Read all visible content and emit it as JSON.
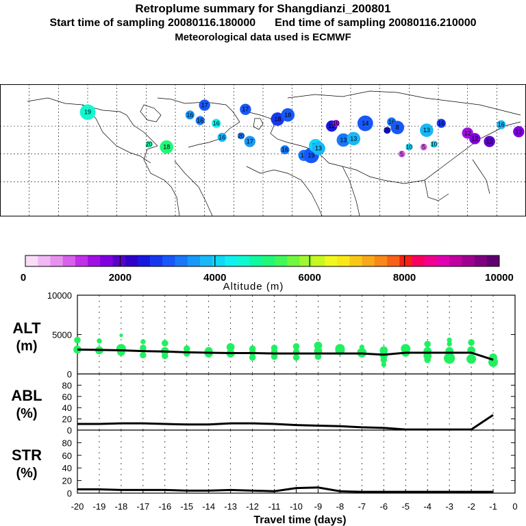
{
  "header": {
    "title": "Retroplume summary for Shangdianzi_200801",
    "start_label": "Start time of sampling 20080116.180000",
    "end_label": "End time of sampling 20080116.210000",
    "met_label": "Meteorological data used is ECMWF"
  },
  "colorbar": {
    "label": "Altitude (m)",
    "tick_labels": [
      "0",
      "2000",
      "4000",
      "6000",
      "8000",
      "10000"
    ],
    "ticks": [
      0,
      2000,
      4000,
      6000,
      8000,
      10000
    ],
    "colors": [
      "#f8dcf8",
      "#f0b8f4",
      "#e890f0",
      "#d860ec",
      "#c030e8",
      "#a010e4",
      "#8000e0",
      "#5a00c8",
      "#3000c8",
      "#1818e0",
      "#1838f0",
      "#1858f8",
      "#1878f8",
      "#1898f8",
      "#18b8f8",
      "#10d8f8",
      "#10f0f0",
      "#10f8d0",
      "#10f8a0",
      "#20f878",
      "#40f858",
      "#70f840",
      "#a0f830",
      "#c8f820",
      "#f0f820",
      "#f8e818",
      "#f8c818",
      "#f8a818",
      "#f88818",
      "#f86018",
      "#f82010",
      "#f80060",
      "#f00090",
      "#e000b0",
      "#c000a0",
      "#a00090",
      "#800080",
      "#600070"
    ]
  },
  "map": {
    "labels": [
      {
        "lon": -120,
        "lat": 70,
        "text": "19",
        "alt": 4600
      },
      {
        "lon": -50,
        "lat": 68,
        "text": "16",
        "alt": 3600
      },
      {
        "lon": -43,
        "lat": 64,
        "text": "16",
        "alt": 3200
      },
      {
        "lon": -32,
        "lat": 62,
        "text": "16",
        "alt": 4400
      },
      {
        "lon": -28,
        "lat": 52,
        "text": "16",
        "alt": 3800
      },
      {
        "lon": -15,
        "lat": 53,
        "text": "20",
        "alt": 3300
      },
      {
        "lon": -9,
        "lat": 49,
        "text": "17",
        "alt": 3600
      },
      {
        "lon": -78,
        "lat": 47,
        "text": "20",
        "alt": 4900
      },
      {
        "lon": -66,
        "lat": 45,
        "text": "18",
        "alt": 5200
      },
      {
        "lon": 10,
        "lat": 65,
        "text": "18",
        "alt": 2800
      },
      {
        "lon": 17,
        "lat": 68,
        "text": "18",
        "alt": 3000
      },
      {
        "lon": 15,
        "lat": 43,
        "text": "16",
        "alt": 3400
      },
      {
        "lon": 28,
        "lat": 39,
        "text": "17",
        "alt": 3200
      },
      {
        "lon": 33,
        "lat": 39,
        "text": "19",
        "alt": 3000
      },
      {
        "lon": 36,
        "lat": 46,
        "text": "13",
        "alt": 4200
      },
      {
        "lon": 38,
        "lat": 44,
        "text": "13",
        "alt": 3800
      },
      {
        "lon": 47,
        "lat": 60,
        "text": "12",
        "alt": 2400
      },
      {
        "lon": 50,
        "lat": 62,
        "text": "10",
        "alt": 1500
      },
      {
        "lon": 55,
        "lat": 50,
        "text": "13",
        "alt": 3300
      },
      {
        "lon": 62,
        "lat": 51,
        "text": "13",
        "alt": 3900
      },
      {
        "lon": 70,
        "lat": 62,
        "text": "14",
        "alt": 2900
      },
      {
        "lon": 88,
        "lat": 63,
        "text": "16",
        "alt": 3400
      },
      {
        "lon": 92,
        "lat": 59,
        "text": "8",
        "alt": 3000
      },
      {
        "lon": 85,
        "lat": 57,
        "text": "20",
        "alt": 2600
      },
      {
        "lon": 100,
        "lat": 45,
        "text": "10",
        "alt": 4100
      },
      {
        "lon": 112,
        "lat": 57,
        "text": "13",
        "alt": 3800
      },
      {
        "lon": 117,
        "lat": 47,
        "text": "10",
        "alt": 4100
      },
      {
        "lon": 122,
        "lat": 62,
        "text": "16",
        "alt": 2800
      },
      {
        "lon": 140,
        "lat": 55,
        "text": "12",
        "alt": 1500
      },
      {
        "lon": 145,
        "lat": 51,
        "text": "12",
        "alt": 1700
      },
      {
        "lon": 155,
        "lat": 49,
        "text": "12",
        "alt": 1900
      },
      {
        "lon": 163,
        "lat": 61,
        "text": "16",
        "alt": 3700
      },
      {
        "lon": 175,
        "lat": 56,
        "text": "12",
        "alt": 1800
      },
      {
        "lon": 110,
        "lat": 45,
        "text": "5",
        "alt": 1000
      },
      {
        "lon": 95,
        "lat": 40,
        "text": "5",
        "alt": 800
      },
      {
        "lon": -12,
        "lat": 72,
        "text": "17",
        "alt": 3000
      },
      {
        "lon": -40,
        "lat": 75,
        "text": "17",
        "alt": 3000
      }
    ]
  },
  "chart_data": [
    {
      "type": "scatter",
      "name": "ALT",
      "ylabel": "ALT\n(m)",
      "ylabel_line1": "ALT",
      "ylabel_line2": "(m)",
      "ylim": [
        0,
        10000
      ],
      "ytick_labels": [
        "10000",
        "5000",
        "0"
      ],
      "line_x": [
        -20,
        -19,
        -18,
        -17,
        -16,
        -15,
        -14,
        -13,
        -12,
        -11,
        -10,
        -9,
        -8,
        -7,
        -6,
        -5,
        -4,
        -3,
        -2,
        -1
      ],
      "line_y": [
        3100,
        3050,
        3000,
        2900,
        2850,
        2750,
        2700,
        2650,
        2650,
        2600,
        2600,
        2600,
        2600,
        2600,
        2450,
        2700,
        2700,
        2700,
        2700,
        1800
      ],
      "points": [
        {
          "x": -20,
          "y": 4300,
          "s": 3
        },
        {
          "x": -20,
          "y": 3100,
          "s": 4
        },
        {
          "x": -19,
          "y": 4200,
          "s": 2
        },
        {
          "x": -19,
          "y": 3000,
          "s": 4
        },
        {
          "x": -18,
          "y": 4900,
          "s": 1
        },
        {
          "x": -18,
          "y": 3200,
          "s": 5
        },
        {
          "x": -18,
          "y": 2800,
          "s": 4
        },
        {
          "x": -17,
          "y": 4100,
          "s": 2
        },
        {
          "x": -17,
          "y": 3300,
          "s": 3
        },
        {
          "x": -17,
          "y": 2400,
          "s": 3
        },
        {
          "x": -16,
          "y": 3900,
          "s": 3
        },
        {
          "x": -16,
          "y": 2900,
          "s": 4
        },
        {
          "x": -16,
          "y": 2300,
          "s": 3
        },
        {
          "x": -15,
          "y": 3200,
          "s": 3
        },
        {
          "x": -15,
          "y": 2600,
          "s": 3
        },
        {
          "x": -14,
          "y": 2900,
          "s": 4
        },
        {
          "x": -14,
          "y": 2600,
          "s": 4
        },
        {
          "x": -13,
          "y": 3400,
          "s": 4
        },
        {
          "x": -13,
          "y": 2600,
          "s": 4
        },
        {
          "x": -12,
          "y": 3200,
          "s": 3
        },
        {
          "x": -12,
          "y": 2700,
          "s": 3
        },
        {
          "x": -12,
          "y": 2100,
          "s": 3
        },
        {
          "x": -11,
          "y": 3300,
          "s": 3
        },
        {
          "x": -11,
          "y": 2800,
          "s": 3
        },
        {
          "x": -11,
          "y": 2200,
          "s": 3
        },
        {
          "x": -10,
          "y": 3500,
          "s": 3
        },
        {
          "x": -10,
          "y": 2800,
          "s": 3
        },
        {
          "x": -10,
          "y": 2100,
          "s": 3
        },
        {
          "x": -9,
          "y": 3600,
          "s": 4
        },
        {
          "x": -9,
          "y": 2900,
          "s": 4
        },
        {
          "x": -9,
          "y": 2200,
          "s": 3
        },
        {
          "x": -8,
          "y": 3200,
          "s": 5
        },
        {
          "x": -8,
          "y": 3000,
          "s": 5
        },
        {
          "x": -7,
          "y": 3400,
          "s": 2
        },
        {
          "x": -7,
          "y": 2700,
          "s": 5
        },
        {
          "x": -6,
          "y": 3000,
          "s": 4
        },
        {
          "x": -6,
          "y": 2400,
          "s": 4
        },
        {
          "x": -6,
          "y": 1800,
          "s": 3
        },
        {
          "x": -6,
          "y": 1200,
          "s": 2
        },
        {
          "x": -5,
          "y": 3200,
          "s": 5
        },
        {
          "x": -5,
          "y": 2700,
          "s": 4
        },
        {
          "x": -4,
          "y": 3800,
          "s": 3
        },
        {
          "x": -4,
          "y": 2900,
          "s": 4
        },
        {
          "x": -4,
          "y": 2300,
          "s": 4
        },
        {
          "x": -4,
          "y": 1800,
          "s": 3
        },
        {
          "x": -3,
          "y": 4300,
          "s": 2
        },
        {
          "x": -3,
          "y": 3800,
          "s": 2
        },
        {
          "x": -3,
          "y": 2900,
          "s": 4
        },
        {
          "x": -3,
          "y": 2000,
          "s": 6
        },
        {
          "x": -2,
          "y": 4000,
          "s": 3
        },
        {
          "x": -2,
          "y": 3000,
          "s": 4
        },
        {
          "x": -2,
          "y": 1900,
          "s": 5
        },
        {
          "x": -1,
          "y": 2100,
          "s": 4
        },
        {
          "x": -1,
          "y": 1500,
          "s": 5
        }
      ]
    },
    {
      "type": "line",
      "name": "ABL",
      "ylabel_line1": "ABL",
      "ylabel_line2": "(%)",
      "ylim": [
        0,
        100
      ],
      "ytick_labels": [
        "80",
        "60",
        "40",
        "20",
        "0"
      ],
      "x": [
        -20,
        -19,
        -18,
        -17,
        -16,
        -15,
        -14,
        -13,
        -12,
        -11,
        -10,
        -9,
        -8,
        -7,
        -6,
        -5,
        -4,
        -3,
        -2,
        -1
      ],
      "y": [
        11,
        11,
        12,
        12,
        11,
        10,
        10,
        12,
        12,
        11,
        9,
        8,
        7,
        5,
        4,
        1,
        1,
        1,
        1,
        27
      ]
    },
    {
      "type": "line",
      "name": "STR",
      "ylabel_line1": "STR",
      "ylabel_line2": "(%)",
      "ylim": [
        0,
        100
      ],
      "ytick_labels": [
        "80",
        "60",
        "40",
        "20",
        "0"
      ],
      "x": [
        -20,
        -19,
        -18,
        -17,
        -16,
        -15,
        -14,
        -13,
        -12,
        -11,
        -10,
        -9,
        -8,
        -7,
        -6,
        -5,
        -4,
        -3,
        -2,
        -1
      ],
      "y": [
        6,
        6,
        5,
        5,
        5,
        4,
        4,
        5,
        4,
        3,
        8,
        9,
        3,
        2,
        2,
        2,
        2,
        2,
        2,
        2
      ]
    }
  ],
  "xaxis": {
    "label": "Travel time (days)",
    "ticks": [
      -20,
      -19,
      -18,
      -17,
      -16,
      -15,
      -14,
      -13,
      -12,
      -11,
      -10,
      -9,
      -8,
      -7,
      -6,
      -5,
      -4,
      -3,
      -2,
      -1,
      0
    ],
    "tick_labels": [
      "-20",
      "-19",
      "-18",
      "-17",
      "-16",
      "-15",
      "-14",
      "-13",
      "-12",
      "-11",
      "-10",
      "-9",
      "-8",
      "-7",
      "-6",
      "-5",
      "-4",
      "-3",
      "-2",
      "-1",
      "0"
    ],
    "xlim": [
      -20,
      0
    ]
  }
}
